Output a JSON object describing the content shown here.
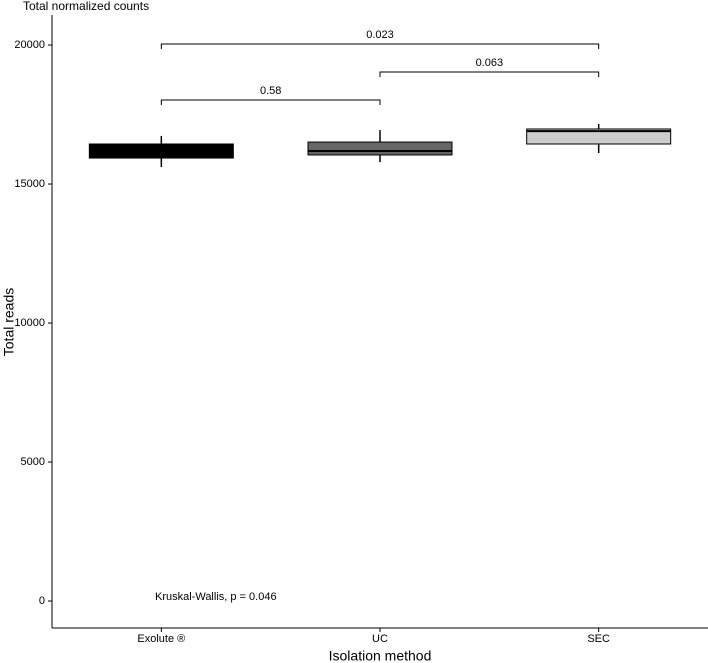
{
  "chart_data": {
    "type": "box",
    "title": "Total normalized counts",
    "x_label": "Isolation method",
    "y_label": "Total reads",
    "annotation": "Kruskal-Wallis, p = 0.046",
    "categories": [
      "Exolute ®",
      "UC",
      "SEC"
    ],
    "boxes": [
      {
        "color": "#000000",
        "whisker_low": 15610,
        "q1": 15935,
        "median": 16200,
        "q3": 16440,
        "whisker_high": 16730
      },
      {
        "color": "#666666",
        "whisker_low": 15790,
        "q1": 16045,
        "median": 16190,
        "q3": 16510,
        "whisker_high": 16940
      },
      {
        "color": "#cccccc",
        "whisker_low": 16115,
        "q1": 16440,
        "median": 16905,
        "q3": 16980,
        "whisker_high": 17160
      }
    ],
    "comparisons": [
      {
        "label": "0.58"
      },
      {
        "label": "0.063"
      },
      {
        "label": "0.023"
      }
    ],
    "ylim": [
      -970,
      21080
    ],
    "yticks": [
      0,
      5000,
      10000,
      15000,
      20000
    ]
  }
}
